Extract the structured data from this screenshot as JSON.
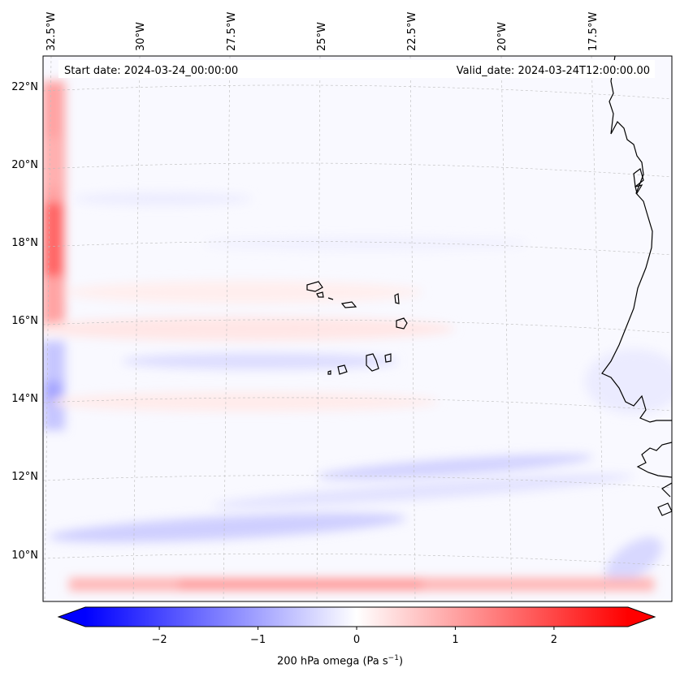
{
  "header": {
    "start_date": "Start date: 2024-03-24_00:00:00",
    "valid_date": "Valid_date: 2024-03-24T12:00:00.00"
  },
  "map": {
    "region": "Eastern tropical Atlantic, Cape Verde and West African coast",
    "lon_labels": [
      "32.5°W",
      "30°W",
      "27.5°W",
      "25°W",
      "22.5°W",
      "20°W",
      "17.5°W"
    ],
    "lat_labels": [
      "22°N",
      "20°N",
      "18°N",
      "16°N",
      "14°N",
      "12°N",
      "10°N"
    ],
    "gridlines": true,
    "features": [
      "cape-verde-islands",
      "african-coastline"
    ]
  },
  "colorbar": {
    "ticks": [
      "−2",
      "−1",
      "0",
      "1",
      "2"
    ],
    "tick_values": [
      -2,
      -1,
      0,
      1,
      2
    ],
    "range": [
      -2.75,
      2.75
    ],
    "cmap": "bwr",
    "extend": "both",
    "colors": {
      "negative": "#0000ff",
      "zero": "#ffffff",
      "positive": "#ff0000"
    }
  },
  "colorbar_label": {
    "text": "200 hPa omega (Pa s",
    "exponent": "−1",
    "suffix": ")"
  }
}
